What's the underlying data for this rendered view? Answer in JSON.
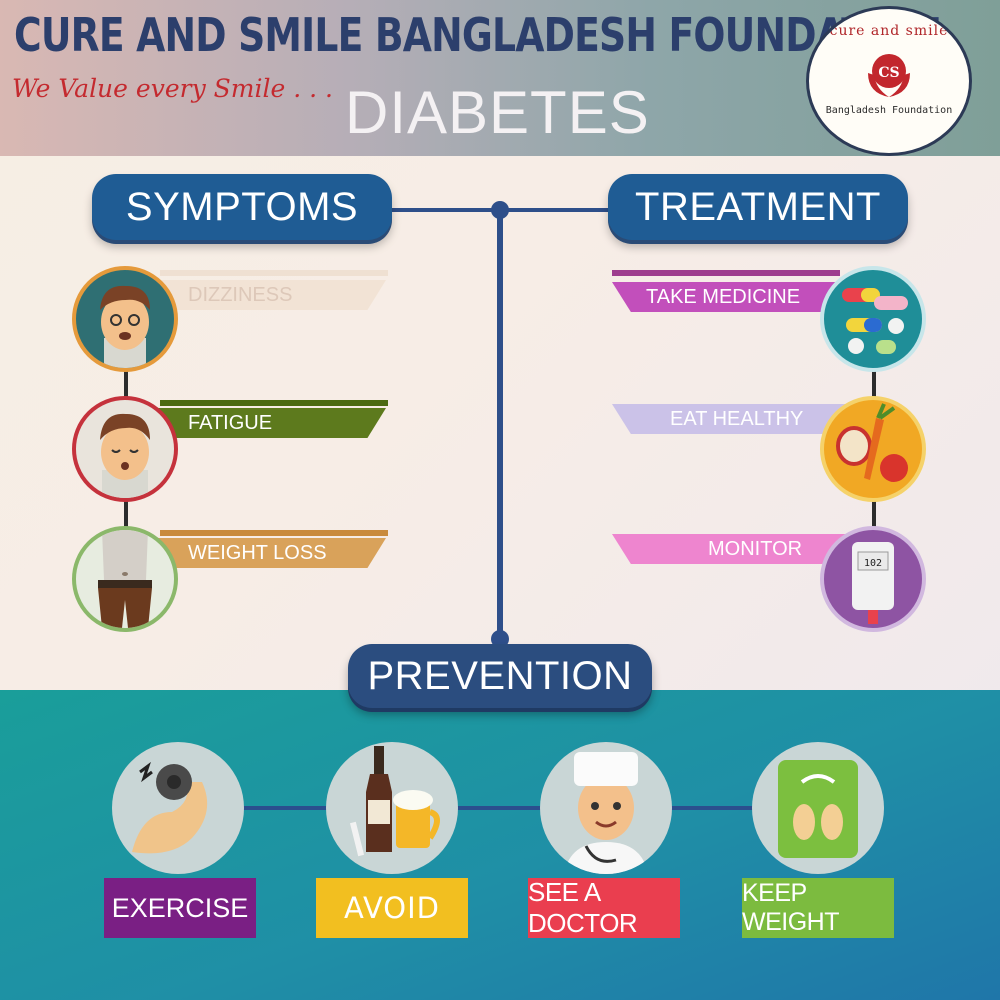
{
  "header": {
    "org_name": "CURE AND SMILE BANGLADESH FOUNDATION",
    "tagline": "We Value every Smile . . .",
    "title": "DIABETES"
  },
  "logo": {
    "top_text": "cure and smile",
    "mark_text": "CS",
    "bottom_text": "Bangladesh Foundation"
  },
  "sections": {
    "symptoms": "SYMPTOMS",
    "treatment": "TREATMENT",
    "prevention": "PREVENTION"
  },
  "symptoms": [
    {
      "label": "DIZZINESS",
      "icon": "dizzy-face-icon",
      "color": "#f2e3d5",
      "text_color": "#d9c3b3"
    },
    {
      "label": "FATIGUE",
      "icon": "tired-face-icon",
      "color": "#5d7a1d"
    },
    {
      "label": "WEIGHT LOSS",
      "icon": "waist-icon",
      "color": "#d9a25a"
    }
  ],
  "treatment": [
    {
      "label": "TAKE MEDICINE",
      "icon": "pills-icon",
      "color": "#c24fbb"
    },
    {
      "label": "EAT HEALTHY",
      "icon": "fruit-vegetable-icon",
      "color": "#cbc2e8"
    },
    {
      "label": "MONITOR",
      "icon": "glucose-meter-icon",
      "color": "#ee85cf",
      "meter_value": "102"
    }
  ],
  "prevention": [
    {
      "label": "EXERCISE",
      "icon": "flexed-arm-icon",
      "color": "#7a1f84"
    },
    {
      "label": "AVOID",
      "icon": "alcohol-cigarette-icon",
      "color": "#f2bf20"
    },
    {
      "label": "SEE A DOCTOR",
      "icon": "doctor-icon",
      "color": "#ea3e4f"
    },
    {
      "label": "KEEP WEIGHT",
      "icon": "scale-icon",
      "color": "#7cbb3f"
    }
  ]
}
